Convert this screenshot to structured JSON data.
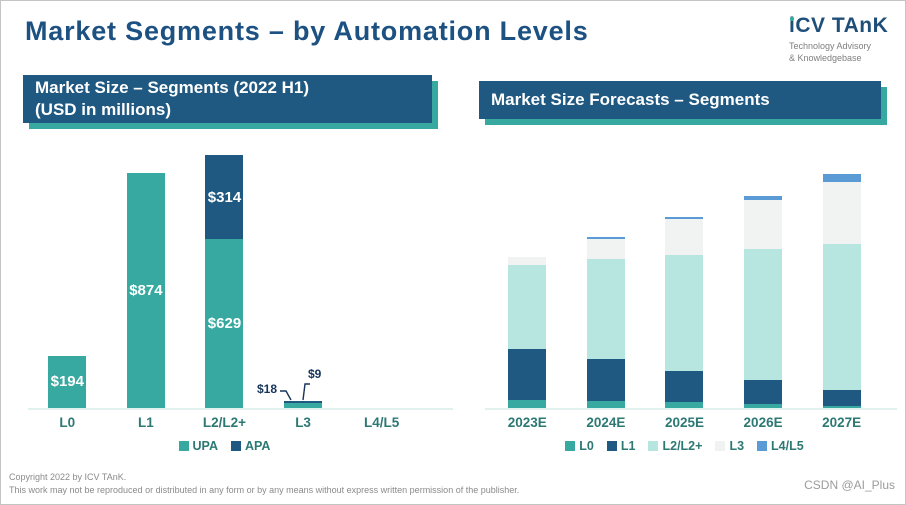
{
  "page": {
    "title": "Market Segments – by Automation Levels",
    "logo": {
      "brand_i": "i",
      "brand_rest": "CV TAnK",
      "tagline1": "Technology Advisory",
      "tagline2": "& Knowledgebase"
    },
    "footer": {
      "line1": "Copyright  2022 by ICV TAnK.",
      "line2": "This work may not be reproduced or distributed in any form or by any means without express written permission of the publisher.",
      "watermark": "CSDN @AI_Plus"
    }
  },
  "colors": {
    "title_navy": "#1C5181",
    "banner_blue": "#1F5880",
    "banner_shadow_teal": "#38A9A1",
    "teal": "#38A9A1",
    "dark_blue": "#1F5880",
    "mint": "#B7E6E1",
    "light_gray": "#F1F2F2",
    "cornflower": "#5B9BD5",
    "axis_label_teal": "#2C7873",
    "footer_gray": "#8A8A8A"
  },
  "chart_data": [
    {
      "id": "market-size-2022h1",
      "type": "bar",
      "stacked": true,
      "title": "Market Size – Segments (2022 H1)",
      "subtitle": "(USD in millions)",
      "unit": "USD millions",
      "categories": [
        "L0",
        "L1",
        "L2/L2+",
        "L3",
        "L4/L5"
      ],
      "series": [
        {
          "name": "UPA",
          "color": "#38A9A1",
          "values": [
            194,
            874,
            629,
            18,
            0
          ],
          "labels": [
            "$194",
            "$874",
            "$629",
            "",
            ""
          ]
        },
        {
          "name": "APA",
          "color": "#1F5880",
          "values": [
            0,
            0,
            314,
            9,
            0
          ],
          "labels": [
            "",
            "",
            "$314",
            "",
            ""
          ]
        }
      ],
      "callouts": [
        {
          "text": "$18",
          "series": "UPA",
          "category": "L3"
        },
        {
          "text": "$9",
          "series": "APA",
          "category": "L3"
        }
      ],
      "ylim": [
        0,
        950
      ],
      "value_axis_visible": false,
      "gridlines": false,
      "legend_position": "bottom"
    },
    {
      "id": "market-size-forecasts",
      "type": "bar",
      "stacked": true,
      "title": "Market Size Forecasts – Segments",
      "values_unit": "relative height, % of plot area (no value axis or data labels shown)",
      "categories": [
        "2023E",
        "2024E",
        "2025E",
        "2026E",
        "2027E"
      ],
      "series": [
        {
          "name": "L0",
          "color": "#38A9A1",
          "values": [
            3.1,
            2.7,
            2.4,
            1.6,
            0.8
          ]
        },
        {
          "name": "L1",
          "color": "#1F5880",
          "values": [
            20.0,
            16.5,
            12.2,
            9.4,
            6.3
          ]
        },
        {
          "name": "L2/L2+",
          "color": "#B7E6E1",
          "values": [
            32.9,
            39.2,
            45.5,
            51.4,
            57.3
          ]
        },
        {
          "name": "L3",
          "color": "#F1F2F2",
          "values": [
            3.1,
            7.8,
            14.1,
            19.2,
            24.3
          ]
        },
        {
          "name": "L4/L5",
          "color": "#5B9BD5",
          "values": [
            0,
            0.8,
            0.8,
            1.6,
            3.1
          ]
        }
      ],
      "ylim": [
        0,
        100
      ],
      "value_axis_visible": false,
      "gridlines": false,
      "legend_position": "bottom"
    }
  ]
}
